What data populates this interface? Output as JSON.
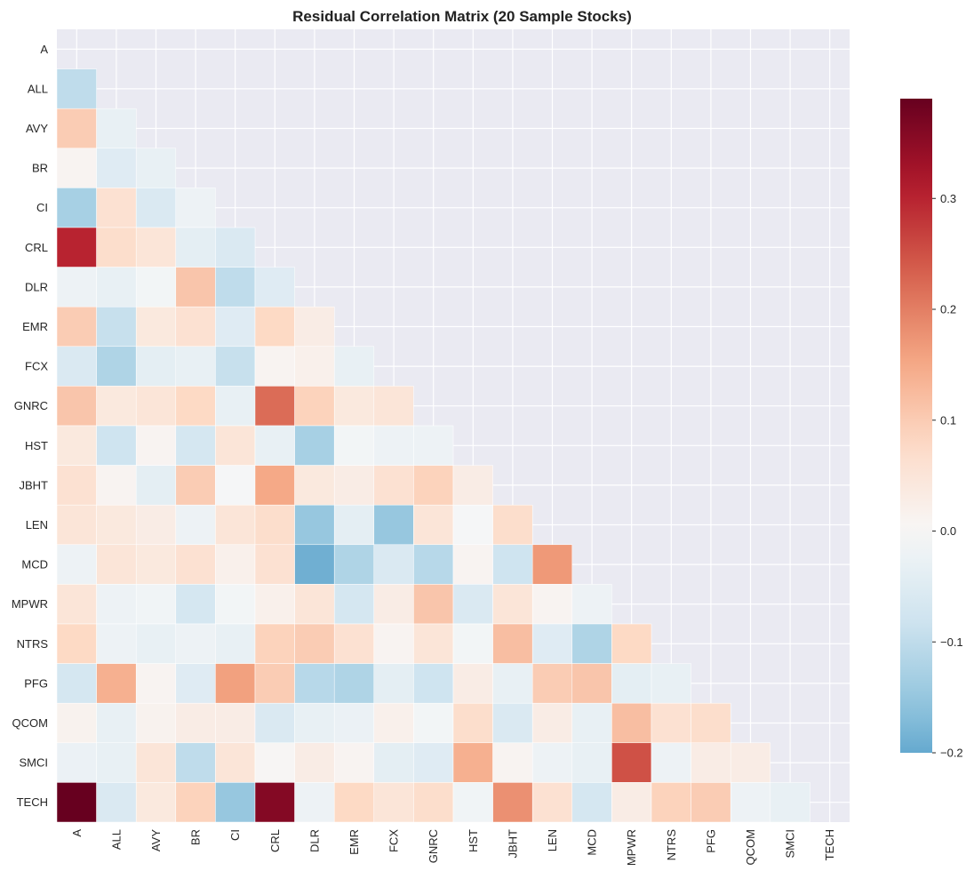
{
  "chart_data": {
    "type": "heatmap",
    "title": "Residual Correlation Matrix (20 Sample Stocks)",
    "xlabel": "",
    "ylabel": "",
    "mask": "upper-triangle-including-diagonal",
    "grid": true,
    "colormap": "RdBu_r",
    "colorbar": {
      "position": "right",
      "vmin": -0.2,
      "vmax": 0.39,
      "center": 0,
      "ticks": [
        -0.2,
        -0.1,
        0.0,
        0.1,
        0.2,
        0.3
      ],
      "tick_labels": [
        "−0.2",
        "−0.1",
        "0.0",
        "0.1",
        "0.2",
        "0.3"
      ]
    },
    "labels": [
      "A",
      "ALL",
      "AVY",
      "BR",
      "CI",
      "CRL",
      "DLR",
      "EMR",
      "FCX",
      "GNRC",
      "HST",
      "JBHT",
      "LEN",
      "MCD",
      "MPWR",
      "NTRS",
      "PFG",
      "QCOM",
      "SMCI",
      "TECH"
    ],
    "values": [
      [],
      [
        -0.1
      ],
      [
        0.1,
        -0.03
      ],
      [
        0.01,
        -0.05,
        -0.03
      ],
      [
        -0.13,
        0.06,
        -0.06,
        -0.02
      ],
      [
        0.3,
        0.07,
        0.05,
        -0.04,
        -0.06
      ],
      [
        -0.02,
        -0.03,
        -0.01,
        0.11,
        -0.1,
        -0.05
      ],
      [
        0.1,
        -0.09,
        0.04,
        0.06,
        -0.05,
        0.08,
        0.03
      ],
      [
        -0.06,
        -0.12,
        -0.04,
        -0.03,
        -0.09,
        0.01,
        0.02,
        -0.03
      ],
      [
        0.11,
        0.04,
        0.05,
        0.08,
        -0.03,
        0.22,
        0.09,
        0.04,
        0.05
      ],
      [
        0.04,
        -0.08,
        0.01,
        -0.07,
        0.05,
        -0.03,
        -0.13,
        -0.01,
        -0.02,
        -0.02
      ],
      [
        0.06,
        0.01,
        -0.04,
        0.1,
        -0.005,
        0.15,
        0.04,
        0.03,
        0.06,
        0.09,
        0.03
      ],
      [
        0.05,
        0.04,
        0.03,
        -0.02,
        0.05,
        0.07,
        -0.15,
        -0.04,
        -0.15,
        0.05,
        -0.005,
        0.07
      ],
      [
        -0.02,
        0.05,
        0.04,
        0.06,
        0.02,
        0.06,
        -0.19,
        -0.12,
        -0.06,
        -0.11,
        0.01,
        -0.08,
        0.17
      ],
      [
        0.05,
        -0.02,
        -0.015,
        -0.07,
        -0.01,
        0.02,
        0.05,
        -0.07,
        0.03,
        0.11,
        -0.06,
        0.05,
        0.01,
        -0.02
      ],
      [
        0.08,
        -0.02,
        -0.03,
        -0.02,
        -0.03,
        0.09,
        0.1,
        0.06,
        0.01,
        0.05,
        -0.01,
        0.12,
        -0.05,
        -0.12,
        0.08
      ],
      [
        -0.07,
        0.14,
        0.01,
        -0.05,
        0.16,
        0.1,
        -0.11,
        -0.12,
        -0.04,
        -0.08,
        0.03,
        -0.03,
        0.1,
        0.11,
        -0.04,
        -0.03
      ],
      [
        0.015,
        -0.03,
        0.015,
        0.03,
        0.03,
        -0.06,
        -0.03,
        -0.025,
        0.02,
        -0.01,
        0.07,
        -0.06,
        0.03,
        -0.03,
        0.12,
        0.06,
        0.07
      ],
      [
        -0.025,
        -0.03,
        0.05,
        -0.1,
        0.05,
        0.005,
        0.03,
        0.01,
        -0.04,
        -0.05,
        0.14,
        0.01,
        -0.02,
        -0.03,
        0.25,
        -0.02,
        0.03,
        0.03
      ],
      [
        0.39,
        -0.06,
        0.04,
        0.09,
        -0.15,
        0.36,
        -0.02,
        0.08,
        0.05,
        0.07,
        -0.015,
        0.18,
        0.06,
        -0.07,
        0.03,
        0.09,
        0.1,
        -0.02,
        -0.03
      ]
    ]
  }
}
